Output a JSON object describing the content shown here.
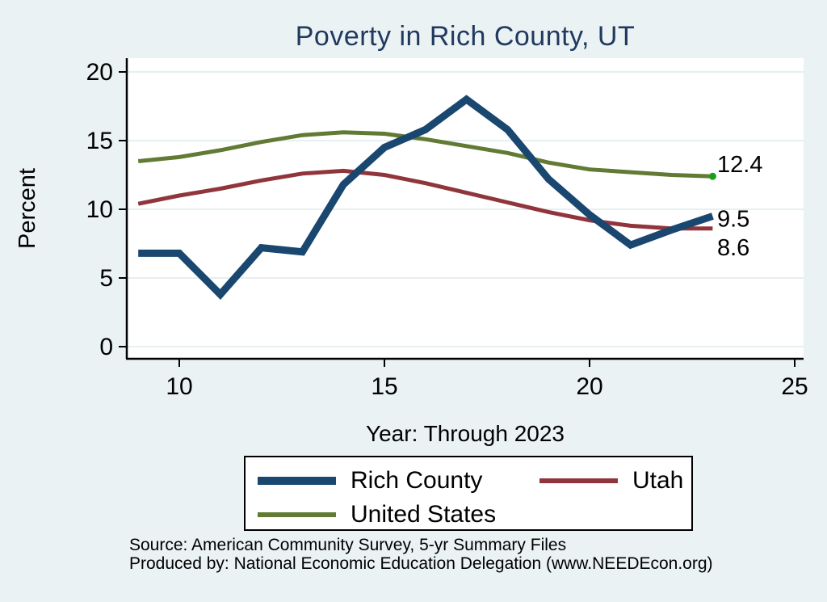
{
  "title": "Poverty in Rich County, UT",
  "axes": {
    "y_label": "Percent",
    "x_label": "Year: Through 2023"
  },
  "chart_data": {
    "type": "line",
    "title": "Poverty in Rich County, UT",
    "xlabel": "Year: Through 2023",
    "ylabel": "Percent",
    "xlim": [
      8.7,
      25.2
    ],
    "ylim": [
      -0.9,
      21
    ],
    "x_ticks": [
      10,
      15,
      20,
      25
    ],
    "y_ticks": [
      0,
      5,
      10,
      15,
      20
    ],
    "grid": "horizontal-only",
    "grid_color": "#dfeaec",
    "plot_background": "#ffffff",
    "page_background": "#eaf2f3",
    "legend_position": "below",
    "x": [
      9,
      10,
      11,
      12,
      13,
      14,
      15,
      16,
      17,
      18,
      19,
      20,
      21,
      22,
      23
    ],
    "series": [
      {
        "name": "Rich County",
        "color": "#1a476f",
        "stroke_width": 9,
        "end_label": "9.5",
        "end_label_dy": 3,
        "values": [
          6.8,
          6.8,
          3.8,
          7.2,
          6.9,
          11.8,
          14.5,
          15.8,
          18.0,
          15.8,
          12.2,
          9.6,
          7.4,
          8.5,
          9.5
        ]
      },
      {
        "name": "Utah",
        "color": "#90353b",
        "stroke_width": 5,
        "end_label": "8.6",
        "end_label_dy": 23,
        "values": [
          10.4,
          11.0,
          11.5,
          12.1,
          12.6,
          12.8,
          12.5,
          11.9,
          11.2,
          10.5,
          9.8,
          9.2,
          8.8,
          8.6,
          8.6
        ]
      },
      {
        "name": "United States",
        "color": "#617a34",
        "stroke_width": 5,
        "end_label": "12.4",
        "end_label_dy": -15,
        "end_marker": true,
        "end_marker_color": "#18a018",
        "values": [
          13.5,
          13.8,
          14.3,
          14.9,
          15.4,
          15.6,
          15.5,
          15.1,
          14.6,
          14.1,
          13.4,
          12.9,
          12.7,
          12.5,
          12.4
        ]
      }
    ]
  },
  "footer": {
    "line1": "Source: American Community Survey, 5-yr Summary Files",
    "line2": "Produced by: National Economic Education Delegation (www.NEEDEcon.org)"
  },
  "colors": {
    "title": "#21395f",
    "axis": "#000000",
    "text": "#000000"
  }
}
